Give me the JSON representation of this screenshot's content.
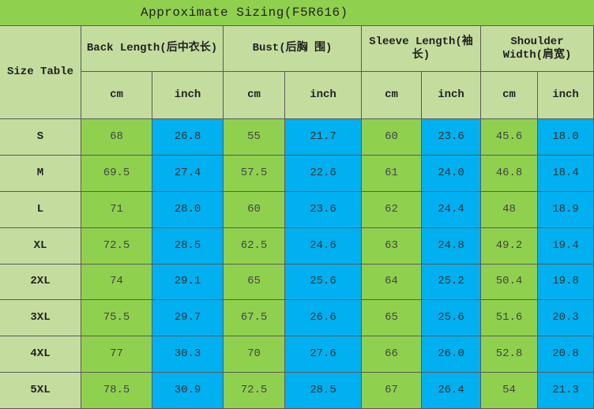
{
  "title": "Approximate Sizing(F5R616)",
  "table": {
    "corner": "Size Table",
    "groups": [
      "Back Length(后中衣长)",
      "Bust(后胸 围)",
      "Sleeve Length(袖长)",
      "Shoulder Width(肩宽)"
    ],
    "units": [
      "cm",
      "inch",
      "cm",
      "inch",
      "cm",
      "inch",
      "cm",
      "inch"
    ],
    "rows": [
      {
        "size": "S",
        "values": [
          "68",
          "26.8",
          "55",
          "21.7",
          "60",
          "23.6",
          "45.6",
          "18.0"
        ]
      },
      {
        "size": "M",
        "values": [
          "69.5",
          "27.4",
          "57.5",
          "22.6",
          "61",
          "24.0",
          "46.8",
          "18.4"
        ]
      },
      {
        "size": "L",
        "values": [
          "71",
          "28.0",
          "60",
          "23.6",
          "62",
          "24.4",
          "48",
          "18.9"
        ]
      },
      {
        "size": "XL",
        "values": [
          "72.5",
          "28.5",
          "62.5",
          "24.6",
          "63",
          "24.8",
          "49.2",
          "19.4"
        ]
      },
      {
        "size": "2XL",
        "values": [
          "74",
          "29.1",
          "65",
          "25.6",
          "64",
          "25.2",
          "50.4",
          "19.8"
        ]
      },
      {
        "size": "3XL",
        "values": [
          "75.5",
          "29.7",
          "67.5",
          "26.6",
          "65",
          "25.6",
          "51.6",
          "20.3"
        ]
      },
      {
        "size": "4XL",
        "values": [
          "77",
          "30.3",
          "70",
          "27.6",
          "66",
          "26.0",
          "52.8",
          "20.8"
        ]
      },
      {
        "size": "5XL",
        "values": [
          "78.5",
          "30.9",
          "72.5",
          "28.5",
          "67",
          "26.4",
          "54",
          "21.3"
        ]
      }
    ]
  }
}
